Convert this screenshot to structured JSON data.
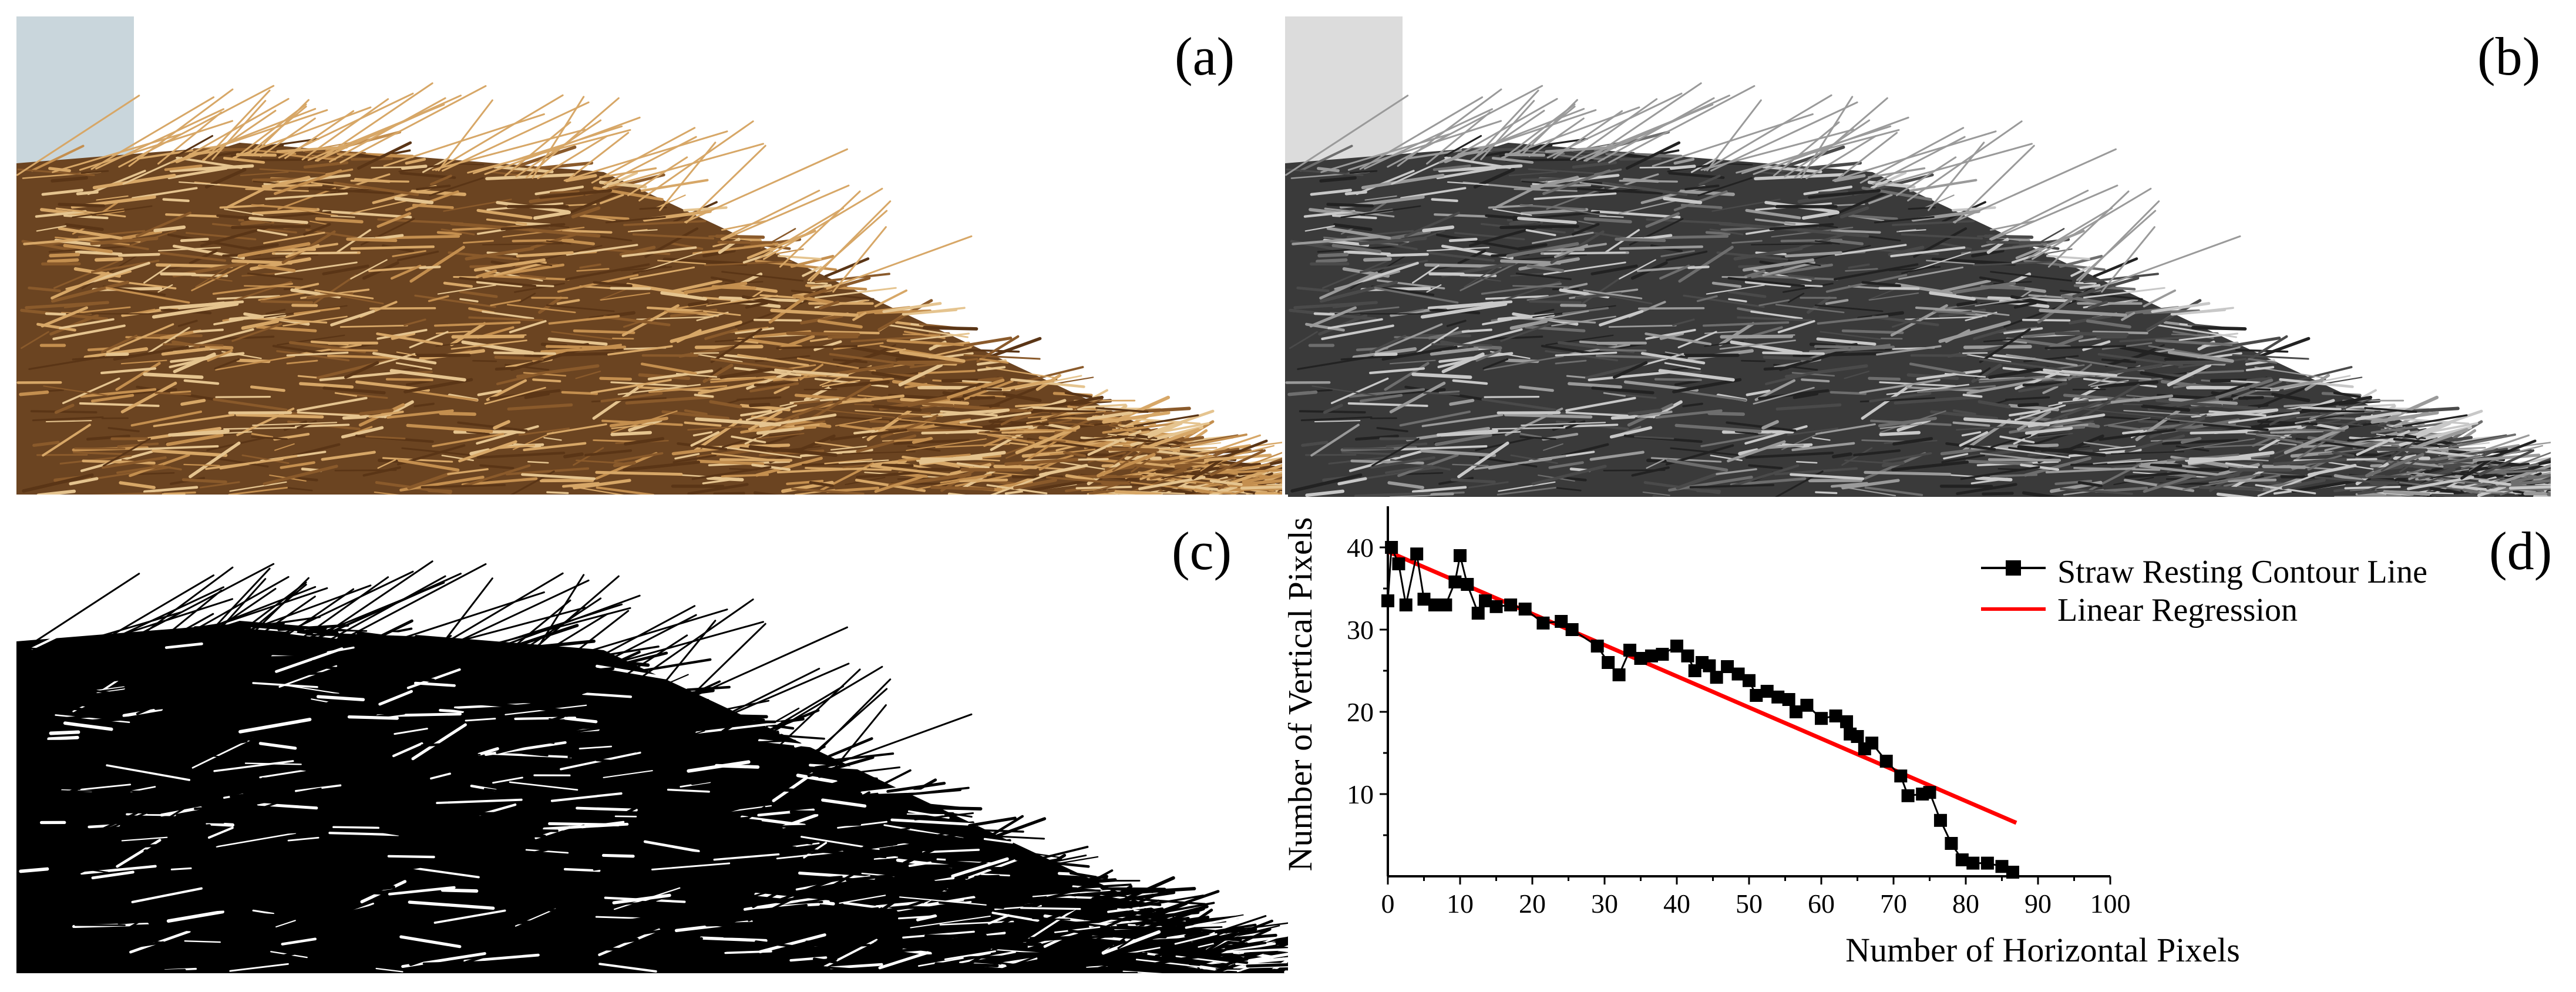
{
  "figure": {
    "panels": [
      {
        "id": "a",
        "label": "(a)",
        "content": "color photograph of resting straw pile"
      },
      {
        "id": "b",
        "label": "(b)",
        "content": "grayscale version of straw pile photograph"
      },
      {
        "id": "c",
        "label": "(c)",
        "content": "binarized black silhouette of straw pile"
      },
      {
        "id": "d",
        "label": "(d)",
        "content": "contour line chart"
      }
    ],
    "colors": {
      "straw_light": "#d7a767",
      "straw_dark": "#6b4421",
      "background_blue": "#c9d6dc",
      "gray_mid": "#5a5a5a",
      "regression_red": "#ff0000",
      "series_black": "#000000"
    }
  },
  "chart_data": {
    "type": "line",
    "xlabel": "Number of Horizontal Pixels",
    "ylabel": "Number of Vertical Pixels",
    "xlim": [
      0,
      100
    ],
    "ylim": [
      0,
      45
    ],
    "xticks": [
      0,
      10,
      20,
      30,
      40,
      50,
      60,
      70,
      80,
      90,
      100
    ],
    "yticks": [
      10,
      20,
      30,
      40
    ],
    "legend_position": "top-right",
    "series": [
      {
        "name": "Straw Resting Contour Line",
        "marker": "square",
        "color": "#000000",
        "points": [
          [
            0,
            33.5
          ],
          [
            0.5,
            40
          ],
          [
            1.5,
            38
          ],
          [
            2.5,
            33
          ],
          [
            4,
            39.2
          ],
          [
            5,
            33.7
          ],
          [
            6.5,
            33
          ],
          [
            8,
            33
          ],
          [
            9.3,
            35.8
          ],
          [
            10,
            39
          ],
          [
            11,
            35.5
          ],
          [
            12.5,
            32
          ],
          [
            13.5,
            33.5
          ],
          [
            15,
            32.8
          ],
          [
            17,
            33
          ],
          [
            19,
            32.5
          ],
          [
            21.5,
            30.8
          ],
          [
            24,
            31
          ],
          [
            25.5,
            30
          ],
          [
            29,
            28
          ],
          [
            30.5,
            26
          ],
          [
            32,
            24.5
          ],
          [
            33.5,
            27.5
          ],
          [
            35,
            26.5
          ],
          [
            36.5,
            26.8
          ],
          [
            38,
            27
          ],
          [
            40,
            28
          ],
          [
            41.5,
            26.8
          ],
          [
            42.5,
            25
          ],
          [
            43.5,
            26
          ],
          [
            44.5,
            25.6
          ],
          [
            45.5,
            24.2
          ],
          [
            47,
            25.5
          ],
          [
            48.5,
            24.6
          ],
          [
            50,
            23.8
          ],
          [
            51,
            22
          ],
          [
            52.5,
            22.5
          ],
          [
            54,
            21.8
          ],
          [
            55.5,
            21.5
          ],
          [
            56.5,
            20
          ],
          [
            58,
            20.8
          ],
          [
            60,
            19.2
          ],
          [
            62,
            19.5
          ],
          [
            63.5,
            18.8
          ],
          [
            64,
            17.3
          ],
          [
            65,
            17
          ],
          [
            66,
            15.5
          ],
          [
            67,
            16.2
          ],
          [
            69,
            14
          ],
          [
            71,
            12.2
          ],
          [
            72,
            9.8
          ],
          [
            74,
            10
          ],
          [
            75,
            10.2
          ],
          [
            76.5,
            6.8
          ],
          [
            78,
            4
          ],
          [
            79.5,
            2
          ],
          [
            81,
            1.6
          ],
          [
            83,
            1.6
          ],
          [
            85,
            1.2
          ],
          [
            86.5,
            0.5
          ]
        ]
      },
      {
        "name": "Linear Regression",
        "color": "#ff0000",
        "line": [
          [
            0,
            39.5
          ],
          [
            87,
            6.5
          ]
        ]
      }
    ]
  }
}
